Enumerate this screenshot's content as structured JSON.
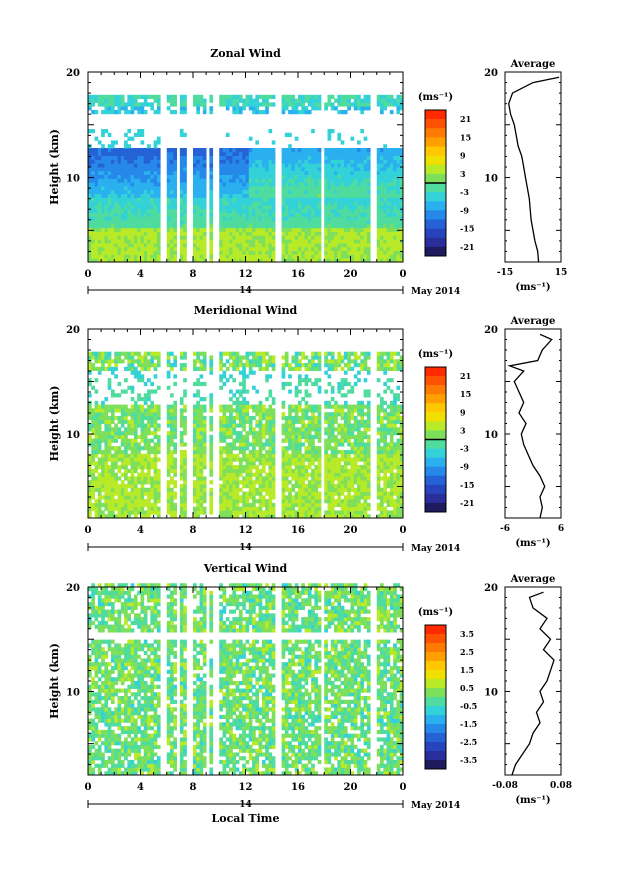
{
  "chart_data": [
    {
      "type": "heatmap",
      "title": "Zonal Wind",
      "ylabel": "Height (km)",
      "ylim": [
        2,
        20
      ],
      "y_ticks": [
        10,
        20
      ],
      "x_tick_labels": [
        "0",
        "4",
        "8",
        "12",
        "16",
        "20",
        "0"
      ],
      "xlim": [
        0,
        24
      ],
      "date_bar": {
        "day": "14",
        "month_label": "May 2014"
      },
      "colorbar": {
        "unit": "(ms⁻¹)",
        "ticks": [
          "21",
          "15",
          "9",
          "3",
          "-3",
          "-9",
          "-15",
          "-21"
        ],
        "range": [
          -24,
          24
        ],
        "contour_marker": 0
      },
      "profile": {
        "title": "Average",
        "xlabel": "(ms⁻¹)",
        "x_tick_labels": [
          "-15",
          "15"
        ],
        "xlim": [
          -15,
          15
        ],
        "y_ticks": [
          10,
          20
        ],
        "heights": [
          2,
          3,
          4,
          5,
          6,
          7,
          8,
          9,
          10,
          11,
          12,
          13,
          14,
          15,
          16,
          17,
          18,
          19,
          19.5
        ],
        "values": [
          3,
          2.5,
          1,
          0,
          -1,
          -1.5,
          -2,
          -3,
          -4,
          -5,
          -6,
          -8,
          -9,
          -10,
          -12,
          -13,
          -11,
          0,
          14
        ]
      }
    },
    {
      "type": "heatmap",
      "title": "Meridional Wind",
      "ylabel": "Height (km)",
      "ylim": [
        2,
        20
      ],
      "y_ticks": [
        10,
        20
      ],
      "x_tick_labels": [
        "0",
        "4",
        "8",
        "12",
        "16",
        "20",
        "0"
      ],
      "xlim": [
        0,
        24
      ],
      "date_bar": {
        "day": "14",
        "month_label": "May 2014"
      },
      "colorbar": {
        "unit": "(ms⁻¹)",
        "ticks": [
          "21",
          "15",
          "9",
          "3",
          "-3",
          "-9",
          "-15",
          "-21"
        ],
        "range": [
          -24,
          24
        ],
        "contour_marker": 0
      },
      "profile": {
        "title": "Average",
        "xlabel": "(ms⁻¹)",
        "x_tick_labels": [
          "-6",
          "6"
        ],
        "xlim": [
          -6,
          6
        ],
        "y_ticks": [
          10,
          20
        ],
        "heights": [
          2,
          3,
          4,
          5,
          6,
          7,
          8,
          9,
          10,
          11,
          12,
          13,
          14,
          15,
          16,
          16.5,
          17,
          18,
          19,
          19.5
        ],
        "values": [
          1.5,
          2,
          1.5,
          2.5,
          1.5,
          0,
          -1,
          -2,
          -2.5,
          -1.5,
          -3,
          -2,
          -3,
          -4,
          -2,
          -5,
          1,
          2,
          4,
          1.5
        ]
      }
    },
    {
      "type": "heatmap",
      "title": "Vertical Wind",
      "ylabel": "Height (km)",
      "ylim": [
        2,
        20
      ],
      "y_ticks": [
        10,
        20
      ],
      "x_tick_labels": [
        "0",
        "4",
        "8",
        "12",
        "16",
        "20",
        "0"
      ],
      "xlim": [
        0,
        24
      ],
      "date_bar": {
        "day": "14",
        "month_label": "May 2014"
      },
      "xlabel": "Local Time",
      "colorbar": {
        "unit": "(ms⁻¹)",
        "ticks": [
          "3.5",
          "2.5",
          "1.5",
          "0.5",
          "-0.5",
          "-1.5",
          "-2.5",
          "-3.5"
        ],
        "range": [
          -4,
          4
        ],
        "contour_marker": null
      },
      "profile": {
        "title": "Average",
        "xlabel": "(ms⁻¹)",
        "x_tick_labels": [
          "-0.08",
          "0.08"
        ],
        "xlim": [
          -0.08,
          0.08
        ],
        "y_ticks": [
          10,
          20
        ],
        "heights": [
          2,
          3,
          4,
          5,
          6,
          7,
          8,
          9,
          10,
          11,
          12,
          13,
          14,
          15,
          16,
          17,
          18,
          19,
          19.5
        ],
        "values": [
          -0.06,
          -0.05,
          -0.03,
          -0.01,
          0.0,
          0.02,
          0.01,
          0.03,
          0.02,
          0.04,
          0.05,
          0.06,
          0.03,
          0.05,
          0.02,
          0.04,
          0.0,
          -0.01,
          0.03
        ]
      }
    }
  ]
}
